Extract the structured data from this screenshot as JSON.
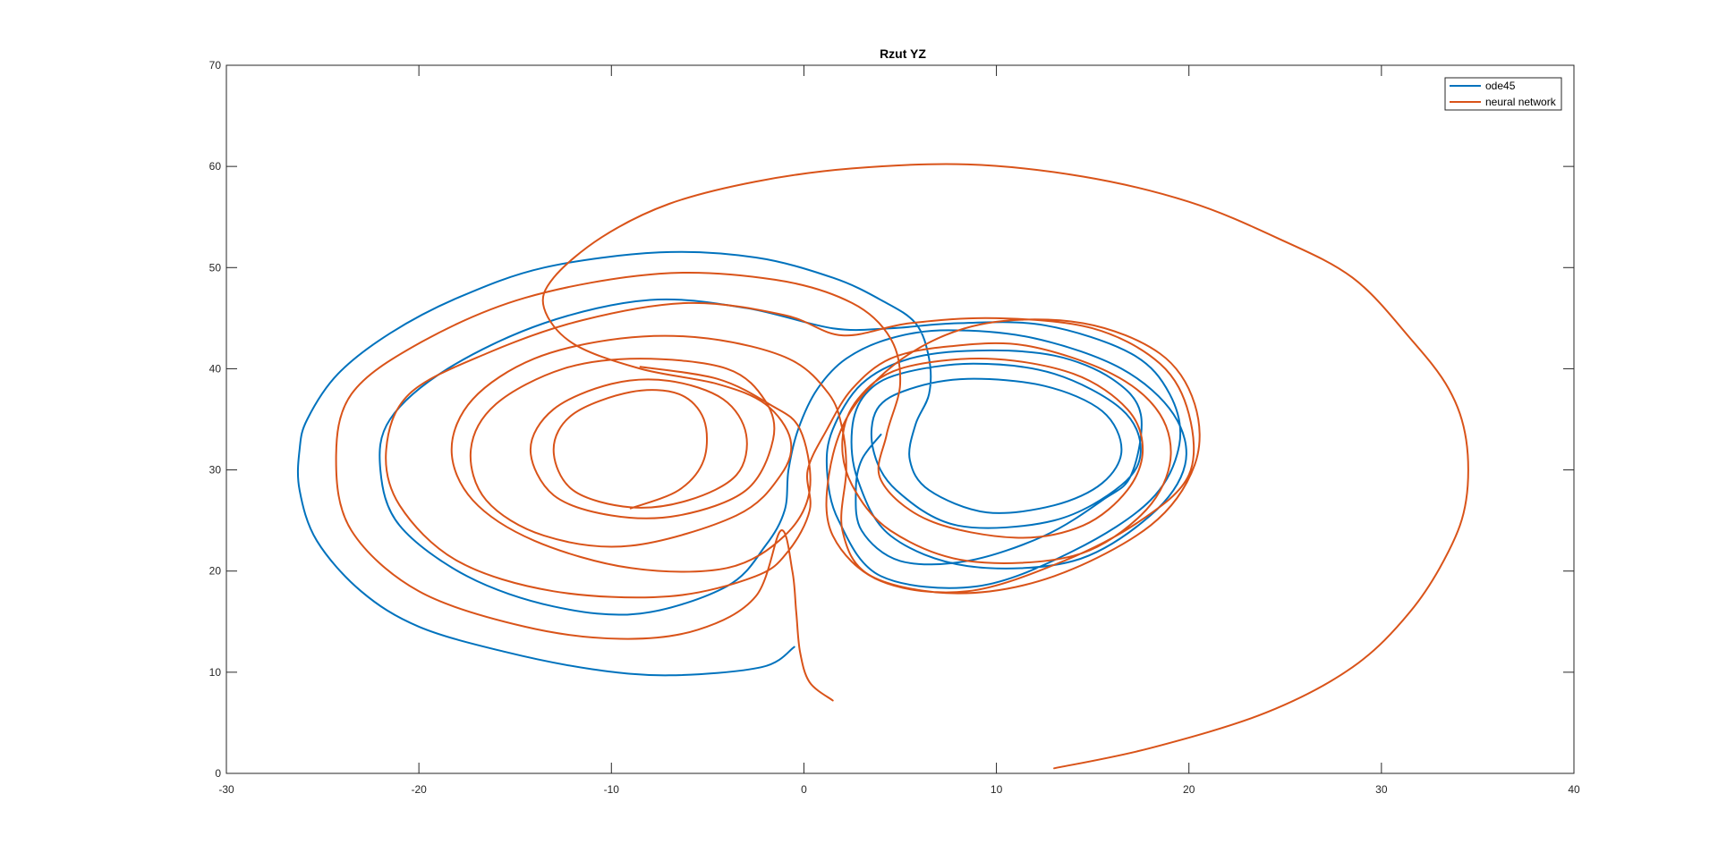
{
  "chart_data": {
    "type": "line",
    "title": "Rzut YZ",
    "xlabel": "",
    "ylabel": "",
    "xlim": [
      -30,
      40
    ],
    "ylim": [
      0,
      70
    ],
    "xticks": [
      -30,
      -20,
      -10,
      0,
      10,
      20,
      30,
      40
    ],
    "yticks": [
      0,
      10,
      20,
      30,
      40,
      50,
      60,
      70
    ],
    "grid": false,
    "legend": "top-right",
    "colors": {
      "ode45": "#0072BD",
      "neural": "#D95319",
      "axis": "#262626"
    },
    "series": [
      {
        "name": "ode45",
        "color": "#0072BD",
        "points": [
          [
            -0.5,
            12.5
          ],
          [
            -2.2,
            10.5
          ],
          [
            -7.0,
            9.7
          ],
          [
            -11.0,
            10.3
          ],
          [
            -15.5,
            12.0
          ],
          [
            -20.0,
            14.5
          ],
          [
            -23.0,
            18.0
          ],
          [
            -25.3,
            23.0
          ],
          [
            -26.2,
            28.0
          ],
          [
            -26.2,
            32.0
          ],
          [
            -25.8,
            35.0
          ],
          [
            -24.2,
            39.5
          ],
          [
            -21.5,
            43.5
          ],
          [
            -18.0,
            47.0
          ],
          [
            -13.5,
            50.0
          ],
          [
            -7.5,
            51.5
          ],
          [
            -2.5,
            51.0
          ],
          [
            1.5,
            49.0
          ],
          [
            4.0,
            46.8
          ],
          [
            5.8,
            44.5
          ],
          [
            6.5,
            41.0
          ],
          [
            6.5,
            37.5
          ],
          [
            5.8,
            34.5
          ],
          [
            5.5,
            31.0
          ],
          [
            6.5,
            28.0
          ],
          [
            9.5,
            25.8
          ],
          [
            13.0,
            26.5
          ],
          [
            15.5,
            28.7
          ],
          [
            16.5,
            32.0
          ],
          [
            15.5,
            35.8
          ],
          [
            12.5,
            38.3
          ],
          [
            8.5,
            39.0
          ],
          [
            5.5,
            38.0
          ],
          [
            3.8,
            36.0
          ],
          [
            3.6,
            32.0
          ],
          [
            4.8,
            28.0
          ],
          [
            8.0,
            24.5
          ],
          [
            13.0,
            25.0
          ],
          [
            16.5,
            28.5
          ],
          [
            17.5,
            32.0
          ],
          [
            16.5,
            36.0
          ],
          [
            13.0,
            39.5
          ],
          [
            8.8,
            40.5
          ],
          [
            5.0,
            39.5
          ],
          [
            3.2,
            37.5
          ],
          [
            2.5,
            34.0
          ],
          [
            2.8,
            29.0
          ],
          [
            4.5,
            23.5
          ],
          [
            8.5,
            20.5
          ],
          [
            14.0,
            21.0
          ],
          [
            18.0,
            25.5
          ],
          [
            19.8,
            30.5
          ],
          [
            19.2,
            35.5
          ],
          [
            16.5,
            40.0
          ],
          [
            12.0,
            43.0
          ],
          [
            7.5,
            43.8
          ],
          [
            4.5,
            43.0
          ],
          [
            2.2,
            41.0
          ],
          [
            0.7,
            38.0
          ],
          [
            -0.3,
            34.0
          ],
          [
            -0.8,
            30.0
          ],
          [
            -1.0,
            26.0
          ],
          [
            -2.0,
            22.5
          ],
          [
            -4.0,
            18.5
          ],
          [
            -8.5,
            15.8
          ],
          [
            -13.0,
            16.5
          ],
          [
            -17.5,
            19.5
          ],
          [
            -21.0,
            24.5
          ],
          [
            -22.0,
            30.0
          ],
          [
            -21.5,
            35.0
          ],
          [
            -18.5,
            40.0
          ],
          [
            -13.5,
            44.5
          ],
          [
            -8.0,
            46.8
          ],
          [
            -3.0,
            46.0
          ],
          [
            1.5,
            44.0
          ],
          [
            4.5,
            44.0
          ],
          [
            8.0,
            44.5
          ],
          [
            12.5,
            44.3
          ],
          [
            17.0,
            41.5
          ],
          [
            19.0,
            37.5
          ],
          [
            19.5,
            32.5
          ],
          [
            18.0,
            27.0
          ],
          [
            14.0,
            22.0
          ],
          [
            9.0,
            18.5
          ],
          [
            4.0,
            19.5
          ],
          [
            1.8,
            25.0
          ],
          [
            1.2,
            30.0
          ],
          [
            1.5,
            34.0
          ],
          [
            3.0,
            38.5
          ],
          [
            5.5,
            41.0
          ],
          [
            9.0,
            41.8
          ],
          [
            13.0,
            41.3
          ],
          [
            16.0,
            39.0
          ],
          [
            17.5,
            35.5
          ],
          [
            17.0,
            29.5
          ],
          [
            15.5,
            27.0
          ],
          [
            12.5,
            23.5
          ],
          [
            8.5,
            21.0
          ],
          [
            5.0,
            21.0
          ],
          [
            3.0,
            24.0
          ],
          [
            2.7,
            28.0
          ],
          [
            3.0,
            31.0
          ],
          [
            4.0,
            33.5
          ]
        ]
      },
      {
        "name": "neural network",
        "color": "#D95319",
        "points": [
          [
            13.0,
            0.5
          ],
          [
            18.0,
            2.5
          ],
          [
            24.0,
            6.0
          ],
          [
            28.5,
            10.5
          ],
          [
            31.5,
            16.0
          ],
          [
            33.5,
            22.0
          ],
          [
            34.4,
            27.0
          ],
          [
            34.4,
            33.0
          ],
          [
            33.5,
            38.0
          ],
          [
            31.5,
            43.0
          ],
          [
            28.5,
            49.0
          ],
          [
            24.5,
            53.0
          ],
          [
            20.0,
            56.5
          ],
          [
            14.5,
            59.0
          ],
          [
            8.5,
            60.2
          ],
          [
            2.5,
            59.8
          ],
          [
            -2.5,
            58.5
          ],
          [
            -7.0,
            56.3
          ],
          [
            -10.5,
            53.0
          ],
          [
            -13.0,
            49.0
          ],
          [
            -13.5,
            46.0
          ],
          [
            -12.0,
            42.5
          ],
          [
            -8.5,
            40.0
          ],
          [
            -4.5,
            38.5
          ],
          [
            -2.0,
            36.5
          ],
          [
            -0.7,
            33.0
          ],
          [
            -1.2,
            29.5
          ],
          [
            -3.5,
            25.5
          ],
          [
            -9.0,
            22.5
          ],
          [
            -13.5,
            23.5
          ],
          [
            -16.5,
            27.0
          ],
          [
            -17.3,
            32.0
          ],
          [
            -16.0,
            36.5
          ],
          [
            -12.5,
            40.0
          ],
          [
            -8.5,
            41.0
          ],
          [
            -4.0,
            40.0
          ],
          [
            -2.0,
            36.8
          ],
          [
            -1.6,
            33.0
          ],
          [
            -3.0,
            28.0
          ],
          [
            -6.5,
            25.5
          ],
          [
            -10.0,
            25.5
          ],
          [
            -13.0,
            27.5
          ],
          [
            -14.2,
            32.0
          ],
          [
            -13.0,
            36.0
          ],
          [
            -10.0,
            38.5
          ],
          [
            -7.0,
            38.8
          ],
          [
            -4.2,
            37.0
          ],
          [
            -3.0,
            33.5
          ],
          [
            -3.5,
            29.5
          ],
          [
            -6.0,
            27.0
          ],
          [
            -9.0,
            26.3
          ],
          [
            -12.0,
            28.0
          ],
          [
            -13.0,
            32.0
          ],
          [
            -12.0,
            35.5
          ],
          [
            -9.0,
            37.7
          ],
          [
            -6.5,
            37.5
          ],
          [
            -5.2,
            35.0
          ],
          [
            -5.2,
            31.0
          ],
          [
            -6.5,
            28.0
          ],
          [
            -9.0,
            26.2
          ]
        ]
      },
      {
        "name": "neural network",
        "color": "#D95319",
        "points": [
          [
            1.5,
            7.2
          ],
          [
            0.3,
            9.0
          ],
          [
            -0.2,
            12.0
          ],
          [
            -0.4,
            16.0
          ],
          [
            -0.6,
            20.0
          ],
          [
            -1.2,
            24.0
          ],
          [
            -2.5,
            17.5
          ],
          [
            -5.5,
            14.2
          ],
          [
            -9.5,
            13.3
          ],
          [
            -14.5,
            14.5
          ],
          [
            -20.0,
            18.0
          ],
          [
            -23.5,
            24.0
          ],
          [
            -24.3,
            31.0
          ],
          [
            -23.5,
            37.5
          ],
          [
            -20.0,
            42.5
          ],
          [
            -14.5,
            47.0
          ],
          [
            -7.5,
            49.4
          ],
          [
            -1.5,
            48.8
          ],
          [
            2.5,
            46.5
          ],
          [
            4.5,
            43.0
          ],
          [
            5.0,
            38.5
          ],
          [
            4.3,
            33.5
          ],
          [
            4.0,
            29.0
          ],
          [
            6.5,
            25.0
          ],
          [
            11.0,
            23.3
          ],
          [
            14.5,
            24.5
          ],
          [
            16.8,
            28.0
          ],
          [
            17.6,
            32.0
          ],
          [
            16.8,
            36.0
          ],
          [
            14.0,
            39.5
          ],
          [
            9.5,
            41.0
          ],
          [
            5.0,
            40.0
          ],
          [
            2.8,
            37.0
          ],
          [
            2.0,
            33.0
          ],
          [
            2.5,
            28.5
          ],
          [
            4.5,
            24.0
          ],
          [
            8.5,
            21.0
          ],
          [
            14.0,
            21.5
          ],
          [
            17.5,
            25.5
          ],
          [
            19.0,
            30.5
          ],
          [
            18.5,
            35.5
          ],
          [
            16.0,
            39.5
          ],
          [
            11.5,
            42.3
          ],
          [
            7.5,
            42.2
          ],
          [
            4.5,
            41.0
          ],
          [
            2.5,
            38.0
          ],
          [
            1.2,
            34.0
          ],
          [
            0.2,
            30.0
          ],
          [
            0.3,
            26.0
          ],
          [
            -0.8,
            22.0
          ],
          [
            -2.5,
            19.5
          ],
          [
            -7.0,
            17.5
          ],
          [
            -13.0,
            18.0
          ],
          [
            -18.0,
            21.0
          ],
          [
            -21.0,
            26.5
          ],
          [
            -21.7,
            32.0
          ],
          [
            -20.5,
            37.5
          ],
          [
            -16.5,
            41.5
          ],
          [
            -11.5,
            44.8
          ],
          [
            -6.0,
            46.5
          ],
          [
            -1.0,
            45.3
          ],
          [
            2.0,
            43.3
          ],
          [
            5.5,
            44.5
          ],
          [
            10.0,
            45.0
          ],
          [
            15.0,
            44.0
          ],
          [
            18.5,
            40.5
          ],
          [
            20.0,
            35.5
          ],
          [
            20.0,
            29.5
          ],
          [
            17.5,
            25.0
          ],
          [
            13.5,
            21.0
          ],
          [
            8.5,
            18.0
          ],
          [
            4.0,
            19.0
          ],
          [
            1.5,
            23.5
          ],
          [
            1.3,
            29.5
          ],
          [
            2.5,
            36.0
          ],
          [
            5.5,
            41.5
          ],
          [
            9.5,
            44.5
          ],
          [
            14.5,
            44.5
          ],
          [
            18.5,
            41.5
          ],
          [
            20.3,
            36.5
          ],
          [
            20.3,
            30.5
          ],
          [
            18.0,
            24.5
          ],
          [
            13.0,
            19.5
          ],
          [
            8.0,
            17.8
          ],
          [
            3.5,
            19.5
          ],
          [
            2.0,
            24.0
          ],
          [
            2.2,
            30.0
          ],
          [
            2.0,
            34.0
          ],
          [
            1.3,
            37.5
          ],
          [
            -0.8,
            41.0
          ],
          [
            -5.0,
            43.0
          ],
          [
            -9.5,
            43.0
          ],
          [
            -14.0,
            41.0
          ],
          [
            -17.2,
            37.0
          ],
          [
            -18.3,
            32.0
          ],
          [
            -17.2,
            27.0
          ],
          [
            -14.0,
            23.0
          ],
          [
            -9.0,
            20.3
          ],
          [
            -4.0,
            20.3
          ],
          [
            -1.0,
            23.5
          ],
          [
            0.3,
            28.0
          ],
          [
            -0.2,
            34.0
          ],
          [
            -1.8,
            36.5
          ],
          [
            -4.5,
            39.0
          ],
          [
            -8.5,
            40.2
          ]
        ]
      }
    ]
  },
  "legend": {
    "entries": [
      {
        "label": "ode45",
        "color": "#0072BD"
      },
      {
        "label": "neural network",
        "color": "#D95319"
      }
    ]
  }
}
